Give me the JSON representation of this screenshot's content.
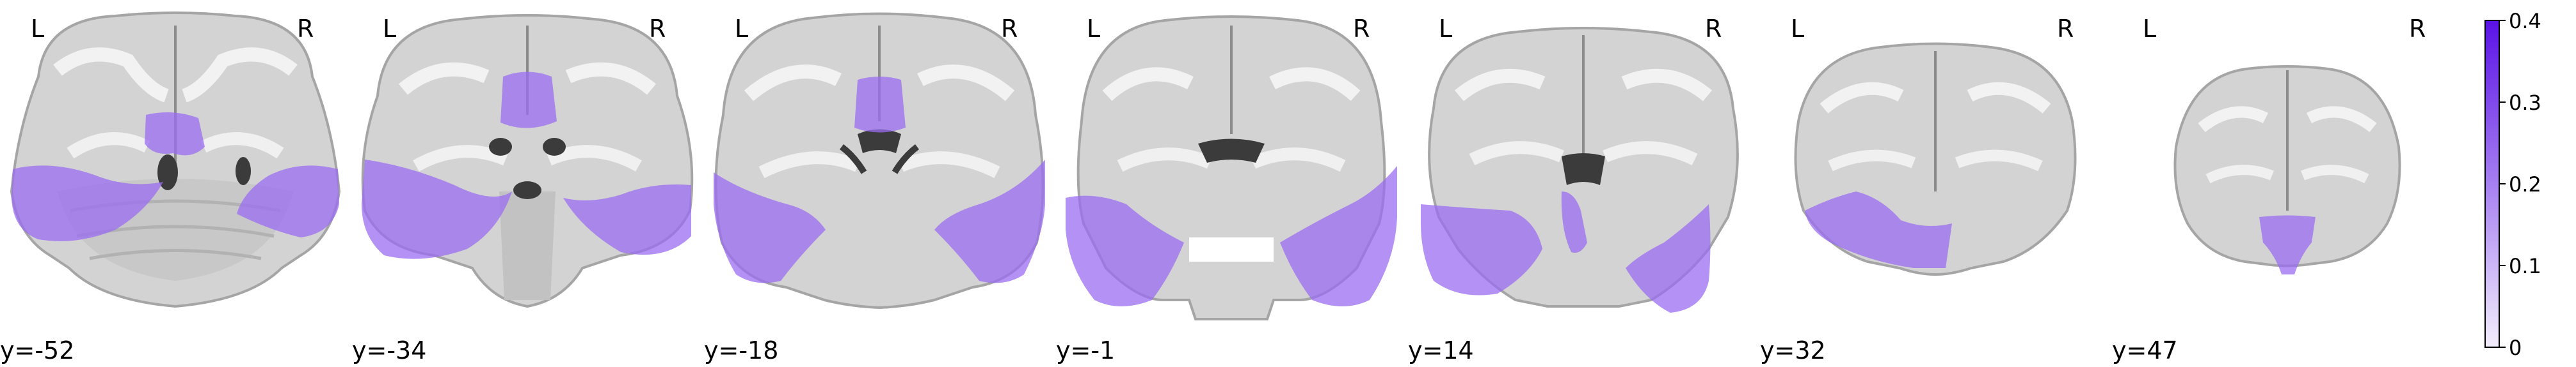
{
  "slices": [
    {
      "coord_label": "y=-52",
      "left_label": "L",
      "right_label": "R"
    },
    {
      "coord_label": "y=-34",
      "left_label": "L",
      "right_label": "R"
    },
    {
      "coord_label": "y=-18",
      "left_label": "L",
      "right_label": "R"
    },
    {
      "coord_label": "y=-1",
      "left_label": "L",
      "right_label": "R"
    },
    {
      "coord_label": "y=14",
      "left_label": "L",
      "right_label": "R"
    },
    {
      "coord_label": "y=32",
      "left_label": "L",
      "right_label": "R"
    },
    {
      "coord_label": "y=47",
      "left_label": "L",
      "right_label": "R"
    }
  ],
  "colorbar": {
    "ticks": [
      "0.4",
      "0.3",
      "0.2",
      "0.1",
      "0"
    ],
    "color_low": "#f3eefc",
    "color_high": "#5a12e6"
  },
  "overlay_color": "#9b6cf0",
  "brain_gray": "#d6d6d6",
  "brain_outline_gray": "#a8a8a8"
}
